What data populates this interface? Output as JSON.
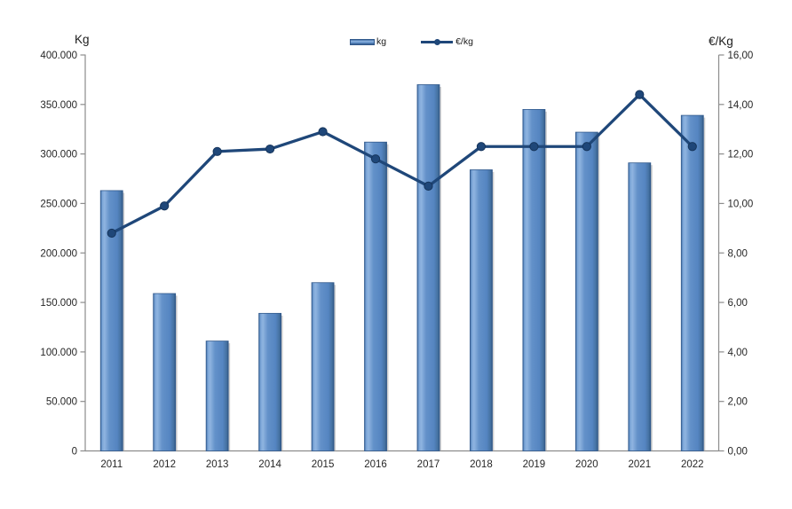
{
  "chart_data": {
    "type": "bar+line combo",
    "title": "",
    "categories": [
      "2011",
      "2012",
      "2013",
      "2014",
      "2015",
      "2016",
      "2017",
      "2018",
      "2019",
      "2020",
      "2021",
      "2022"
    ],
    "series": [
      {
        "name": "kg",
        "type": "bar",
        "axis": "left",
        "values": [
          263000,
          159000,
          111000,
          139000,
          170000,
          312000,
          370000,
          284000,
          345000,
          322000,
          291000,
          339000
        ]
      },
      {
        "name": "€/kg",
        "type": "line",
        "axis": "right",
        "values": [
          8.8,
          9.9,
          12.1,
          12.2,
          12.9,
          11.8,
          10.7,
          12.3,
          12.3,
          12.3,
          14.4,
          12.3
        ]
      }
    ],
    "left_axis": {
      "title": "Kg",
      "min": 0,
      "max": 400000,
      "tick_step": 50000,
      "tick_labels_top_to_bottom": [
        "400.000",
        "350.000",
        "300.000",
        "250.000",
        "200.000",
        "150.000",
        "100.000",
        "50.000",
        "0"
      ]
    },
    "right_axis": {
      "title": "€/Kg",
      "min": 0,
      "max": 16,
      "tick_step": 2,
      "tick_labels_top_to_bottom": [
        "16,00",
        "14,00",
        "12,00",
        "10,00",
        "8,00",
        "6,00",
        "4,00",
        "2,00",
        "0,00"
      ]
    },
    "legend": {
      "position": "top-center",
      "entries": [
        {
          "label": "kg",
          "swatch": "bar"
        },
        {
          "label": "€/kg",
          "swatch": "line-with-marker"
        }
      ]
    },
    "grid": "off",
    "background": "#FFFFFF",
    "colors": {
      "bar_gradient": [
        "#3E6CA3",
        "#7CA6D8",
        "#8FB4E0",
        "#6391C9",
        "#5585C1",
        "#44709F",
        "#2E5380"
      ],
      "bar_border": "#31598C",
      "bar_shadow": "#A8A8A8",
      "line": "#1F4779",
      "marker_stroke": "#16355C",
      "axis": "#8C8C8C",
      "tick_text": "#262626",
      "title_text": "#1A1A1A"
    }
  }
}
